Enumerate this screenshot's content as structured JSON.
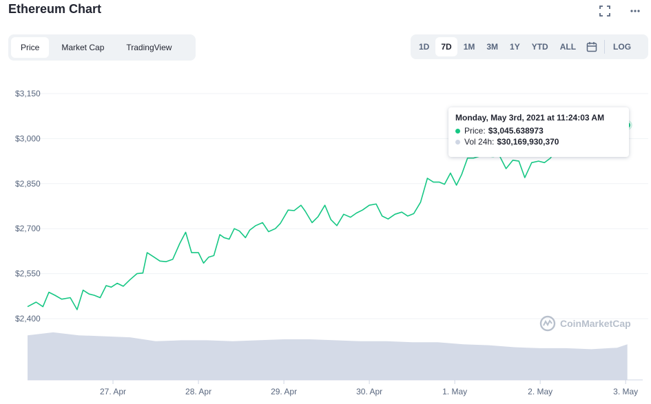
{
  "header": {
    "title": "Ethereum Chart",
    "fullscreen_icon": "fullscreen-icon",
    "more_icon": "more-icon"
  },
  "tabs": [
    {
      "label": "Price",
      "active": true
    },
    {
      "label": "Market Cap",
      "active": false
    },
    {
      "label": "TradingView",
      "active": false
    }
  ],
  "ranges": [
    {
      "label": "1D",
      "active": false
    },
    {
      "label": "7D",
      "active": true
    },
    {
      "label": "1M",
      "active": false
    },
    {
      "label": "3M",
      "active": false
    },
    {
      "label": "1Y",
      "active": false
    },
    {
      "label": "YTD",
      "active": false
    },
    {
      "label": "ALL",
      "active": false
    }
  ],
  "calendar_icon": "calendar-icon",
  "log_label": "LOG",
  "tooltip": {
    "date": "Monday, May 3rd, 2021 at 11:24:03 AM",
    "price_label": "Price:",
    "price_value": "$3,045.638973",
    "vol_label": "Vol 24h:",
    "vol_value": "$30,169,930,370"
  },
  "watermark": "CoinMarketCap",
  "colors": {
    "price_line": "#16c784",
    "volume": "#cfd6e4",
    "grid": "#eff2f5",
    "axis_text": "#58667e"
  },
  "chart_data": {
    "type": "line",
    "title": "",
    "xlabel": "",
    "ylabel": "",
    "ylim": [
      2400,
      3150
    ],
    "y_ticks": [
      2400,
      2550,
      2700,
      2850,
      3000,
      3150
    ],
    "y_tick_labels": [
      "$2,400",
      "$2,550",
      "$2,700",
      "$2,850",
      "$3,000",
      "$3,150"
    ],
    "x_ticks": [
      {
        "day": 1,
        "label": "27. Apr"
      },
      {
        "day": 2,
        "label": "28. Apr"
      },
      {
        "day": 3,
        "label": "29. Apr"
      },
      {
        "day": 4,
        "label": "30. Apr"
      },
      {
        "day": 5,
        "label": "1. May"
      },
      {
        "day": 6,
        "label": "2. May"
      },
      {
        "day": 7,
        "label": "3. May"
      }
    ],
    "x_range_days": [
      0.0,
      7.2
    ],
    "series": [
      {
        "values_x": [
          0.0,
          0.1,
          0.18,
          0.25,
          0.32,
          0.4,
          0.5,
          0.58,
          0.65,
          0.72,
          0.78,
          0.85,
          0.92,
          0.98,
          1.05,
          1.12,
          1.2,
          1.28,
          1.35,
          1.4,
          1.48,
          1.55,
          1.62,
          1.7,
          1.78,
          1.85,
          1.92,
          2.0,
          2.06,
          2.12,
          2.18,
          2.25,
          2.3,
          2.36,
          2.42,
          2.48,
          2.55,
          2.6,
          2.67,
          2.75,
          2.82,
          2.9,
          2.96,
          3.05,
          3.12,
          3.2,
          3.25,
          3.33,
          3.4,
          3.48,
          3.55,
          3.62,
          3.7,
          3.78,
          3.85,
          3.92,
          4.0,
          4.08,
          4.15,
          4.22,
          4.3,
          4.38,
          4.45,
          4.52,
          4.6,
          4.68,
          4.75,
          4.82,
          4.88,
          4.95,
          5.02,
          5.08,
          5.15,
          5.22,
          5.3,
          5.38,
          5.45,
          5.52,
          5.6,
          5.68,
          5.75,
          5.82,
          5.9,
          5.98,
          6.05,
          6.12,
          6.18,
          6.25,
          6.32,
          6.4,
          6.48,
          6.55,
          6.62,
          6.7,
          6.78,
          6.85,
          6.92,
          6.98,
          7.02
        ],
        "values": [
          2440,
          2455,
          2440,
          2488,
          2478,
          2465,
          2470,
          2430,
          2495,
          2482,
          2478,
          2470,
          2510,
          2505,
          2518,
          2508,
          2530,
          2550,
          2552,
          2620,
          2605,
          2592,
          2590,
          2598,
          2650,
          2688,
          2620,
          2620,
          2585,
          2605,
          2610,
          2680,
          2670,
          2665,
          2700,
          2692,
          2670,
          2695,
          2710,
          2720,
          2690,
          2700,
          2718,
          2762,
          2760,
          2778,
          2758,
          2720,
          2740,
          2778,
          2730,
          2710,
          2748,
          2738,
          2752,
          2762,
          2778,
          2782,
          2742,
          2732,
          2748,
          2755,
          2742,
          2750,
          2788,
          2868,
          2855,
          2855,
          2848,
          2885,
          2845,
          2880,
          2935,
          2935,
          2942,
          2942,
          2940,
          2945,
          2900,
          2928,
          2925,
          2870,
          2920,
          2925,
          2920,
          2935,
          2960,
          2980,
          2965,
          2960,
          2945,
          2958,
          2970,
          2990,
          2985,
          3010,
          3030,
          3043,
          3045
        ],
        "volume_x": [
          0.0,
          0.3,
          0.6,
          0.9,
          1.2,
          1.5,
          1.8,
          2.1,
          2.4,
          2.7,
          3.0,
          3.3,
          3.6,
          3.9,
          4.2,
          4.5,
          4.8,
          5.1,
          5.4,
          5.7,
          6.0,
          6.3,
          6.6,
          6.9,
          7.02
        ],
        "volume_rel": [
          0.9,
          0.96,
          0.9,
          0.88,
          0.86,
          0.78,
          0.8,
          0.8,
          0.78,
          0.8,
          0.82,
          0.82,
          0.8,
          0.78,
          0.78,
          0.76,
          0.76,
          0.72,
          0.7,
          0.66,
          0.64,
          0.64,
          0.62,
          0.65,
          0.72
        ]
      }
    ],
    "marker": {
      "x": 7.02,
      "y": 3045
    },
    "legend": "none",
    "grid": true
  }
}
